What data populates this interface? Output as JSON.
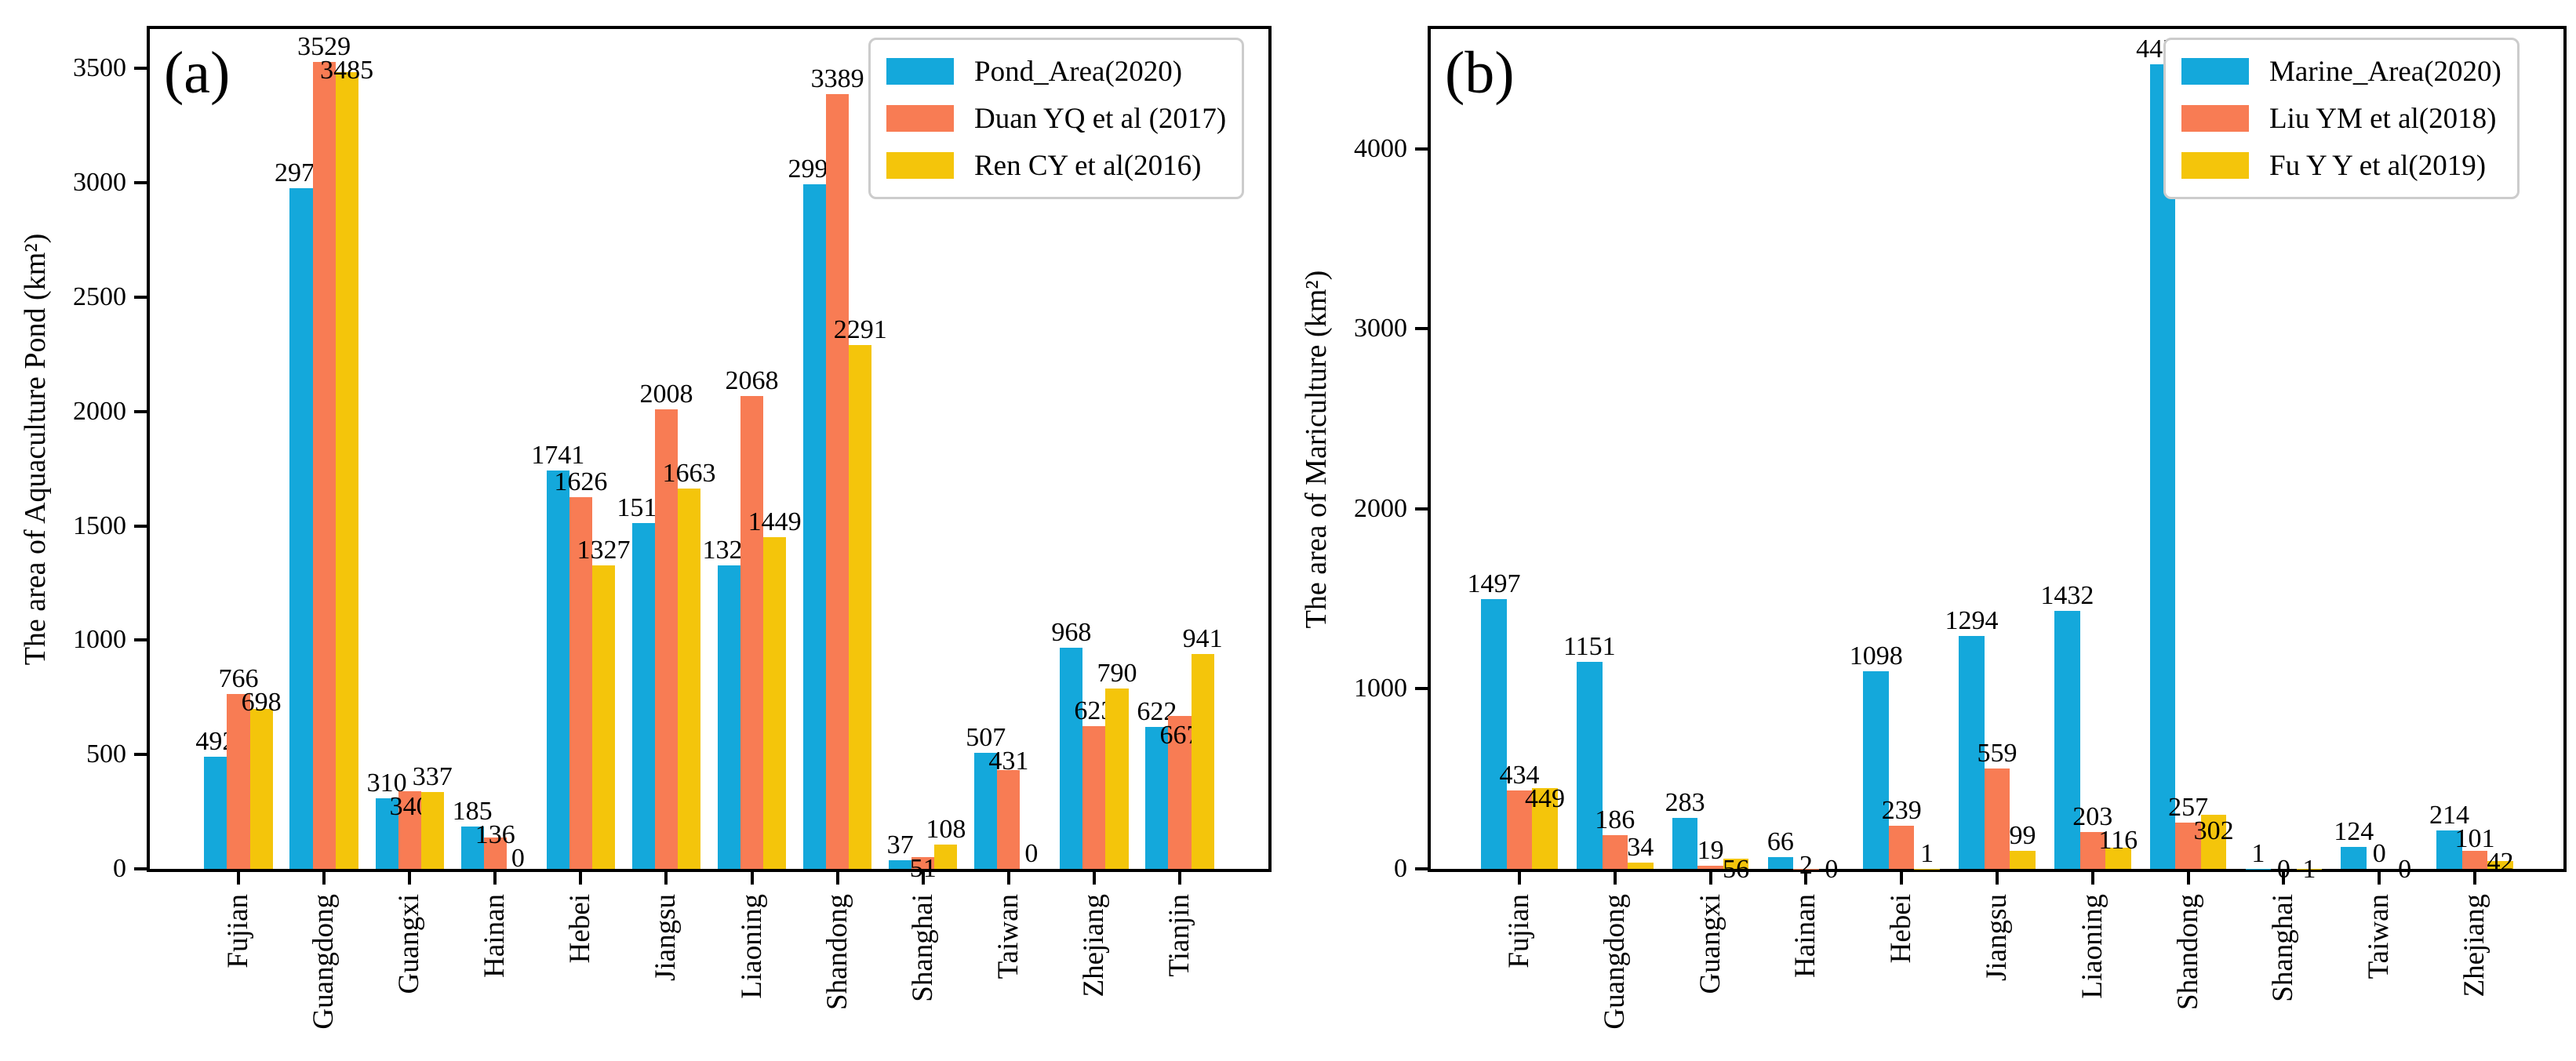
{
  "colors": {
    "background": "#ffffff",
    "frame": "#000000",
    "legend_border": "#cccccc",
    "series_blue": "#14A8DB",
    "series_orange": "#F87C54",
    "series_yellow": "#F4C50B"
  },
  "chart_data": [
    {
      "id": "a",
      "type": "bar",
      "panel_label": "(a)",
      "ylabel": "The area of Aquaculture Pond (km²)",
      "ylim": [
        0,
        3700
      ],
      "yticks": [
        0,
        500,
        1000,
        1500,
        2000,
        2500,
        3000,
        3500
      ],
      "grid": false,
      "legend_position": "upper right",
      "categories": [
        "Fujian",
        "Guangdong",
        "Guangxi",
        "Hainan",
        "Hebei",
        "Jiangsu",
        "Liaoning",
        "Shandong",
        "Shanghai",
        "Taiwan",
        "Zhejiang",
        "Tianjin"
      ],
      "series": [
        {
          "name": "Pond_Area(2020)",
          "color": "#14A8DB",
          "values": [
            492,
            2975,
            310,
            185,
            1741,
            1512,
            1328,
            2992,
            37,
            507,
            968,
            622
          ]
        },
        {
          "name": "Duan YQ et al (2017)",
          "color": "#F87C54",
          "values": [
            766,
            3529,
            340,
            136,
            1626,
            2008,
            2068,
            3389,
            51,
            431,
            623,
            667
          ]
        },
        {
          "name": "Ren CY et al(2016)",
          "color": "#F4C50B",
          "values": [
            698,
            3485,
            337,
            0,
            1327,
            1663,
            1449,
            2291,
            108,
            0,
            790,
            941
          ]
        }
      ]
    },
    {
      "id": "b",
      "type": "bar",
      "panel_label": "(b)",
      "ylabel": "The area of Mariculture (km²)",
      "ylim": [
        0,
        4700
      ],
      "yticks": [
        0,
        1000,
        2000,
        3000,
        4000
      ],
      "grid": false,
      "legend_position": "upper right",
      "categories": [
        "Fujian",
        "Guangdong",
        "Guangxi",
        "Hainan",
        "Hebei",
        "Jiangsu",
        "Liaoning",
        "Shandong",
        "Shanghai",
        "Taiwan",
        "Zhejiang"
      ],
      "series": [
        {
          "name": "Marine_Area(2020)",
          "color": "#14A8DB",
          "values": [
            1497,
            1151,
            283,
            66,
            1098,
            1294,
            1432,
            4470,
            1,
            124,
            214
          ]
        },
        {
          "name": "Liu YM et al(2018)",
          "color": "#F87C54",
          "values": [
            434,
            186,
            19,
            2,
            239,
            559,
            203,
            257,
            0,
            0,
            101
          ]
        },
        {
          "name": "Fu Y Y et al(2019)",
          "color": "#F4C50B",
          "values": [
            449,
            34,
            56,
            0,
            1,
            99,
            116,
            302,
            1,
            0,
            42
          ]
        }
      ]
    }
  ]
}
